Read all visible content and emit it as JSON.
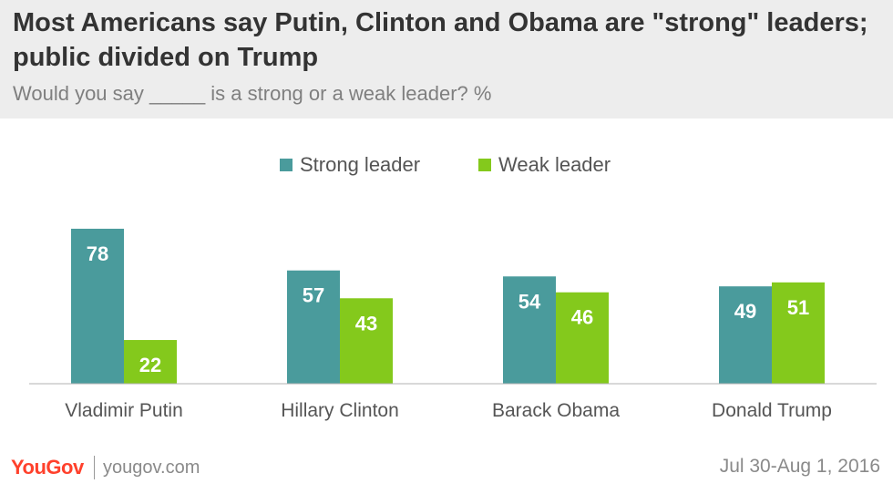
{
  "header": {
    "title": "Most Americans say Putin, Clinton and Obama are \"strong\" leaders; public divided on Trump",
    "subtitle": "Would you say _____ is a strong or a weak leader? %"
  },
  "colors": {
    "strong": "#4a9b9c",
    "weak": "#84c91c",
    "header_bg": "#ededed",
    "brand": "#ff412c"
  },
  "chart_data": {
    "type": "bar",
    "categories": [
      "Vladimir Putin",
      "Hillary Clinton",
      "Barack Obama",
      "Donald Trump"
    ],
    "series": [
      {
        "name": "Strong leader",
        "values": [
          78,
          57,
          54,
          49
        ]
      },
      {
        "name": "Weak leader",
        "values": [
          22,
          43,
          46,
          51
        ]
      }
    ],
    "ylim": [
      0,
      100
    ],
    "grid": false,
    "legend_position": "top-center",
    "data_labels": true
  },
  "footer": {
    "brand": "YouGov",
    "url": "yougov.com",
    "date": "Jul 30-Aug 1, 2016"
  }
}
